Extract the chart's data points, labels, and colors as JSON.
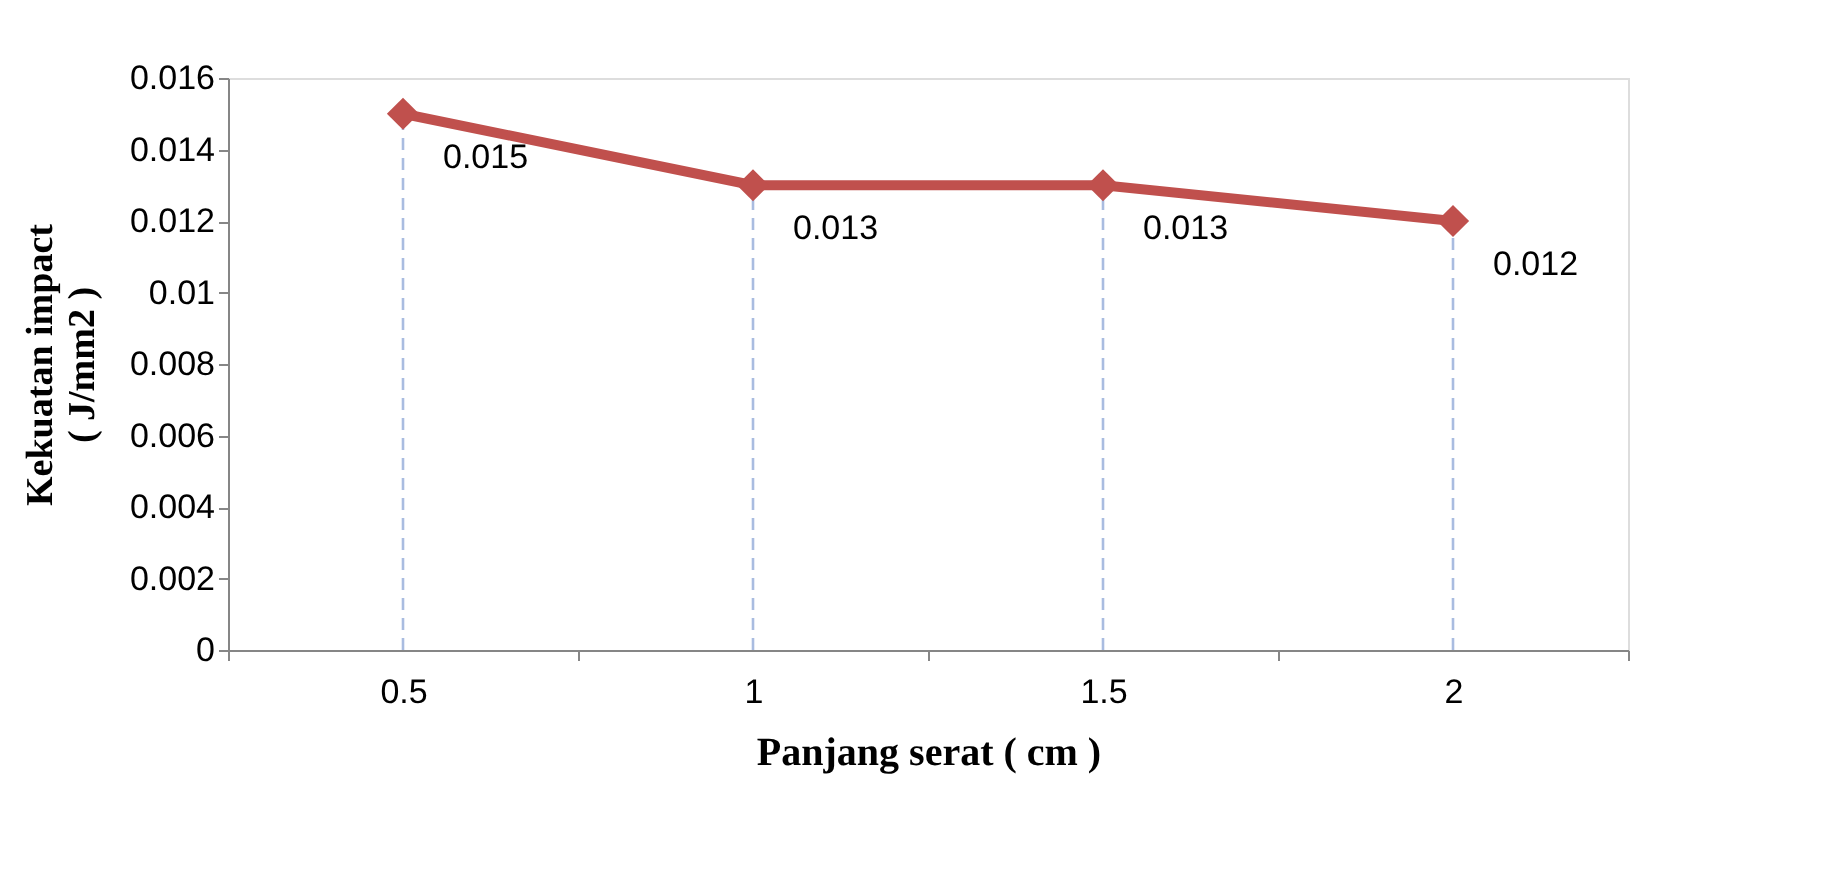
{
  "chart_data": {
    "type": "line",
    "xlabel": "Panjang serat ( cm )",
    "ylabel": "Kekuatan impact\n( J/mm2 )",
    "categories": [
      "0.5",
      "1",
      "1.5",
      "2"
    ],
    "series": [
      {
        "color": "#c0504d",
        "values": [
          0.015,
          0.013,
          0.013,
          0.012
        ]
      }
    ],
    "ylim": [
      0,
      0.016
    ],
    "yticks": [
      0,
      0.002,
      0.004,
      0.006,
      0.008,
      0.01,
      0.012,
      0.014,
      0.016
    ],
    "ref_lines": [
      {
        "axis": "x",
        "value": "0.5",
        "color": "#a9bce0",
        "line_style": "dashed"
      },
      {
        "axis": "x",
        "value": "1",
        "color": "#a9bce0",
        "line_style": "dashed"
      },
      {
        "axis": "x",
        "value": "1.5",
        "color": "#a9bce0",
        "line_style": "dashed"
      },
      {
        "axis": "x",
        "value": "2",
        "color": "#a9bce0",
        "line_style": "dashed"
      }
    ],
    "data_labels": true,
    "marker": "diamond",
    "line_style": "solid",
    "grid": false
  }
}
